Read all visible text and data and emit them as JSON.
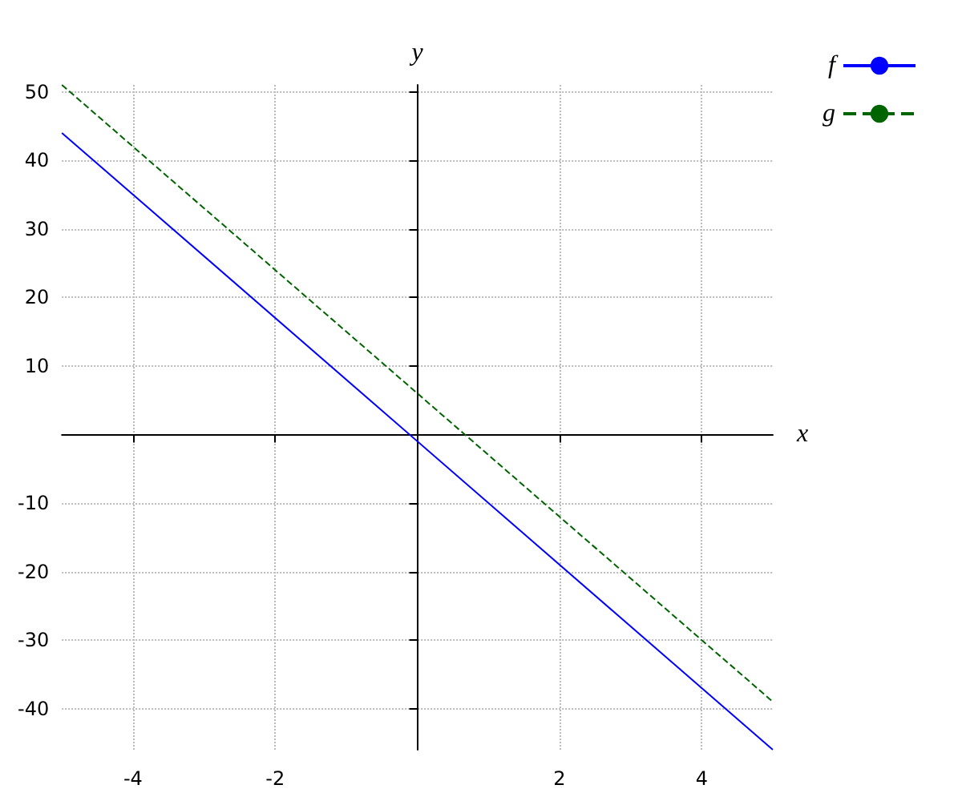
{
  "chart_data": {
    "type": "line",
    "xlabel": "x",
    "ylabel": "y",
    "x": [
      -5,
      5
    ],
    "series": [
      {
        "name": "f",
        "color": "#0000ff",
        "values": [
          44,
          -46
        ],
        "line_style": "solid"
      },
      {
        "name": "g",
        "color": "#006400",
        "values": [
          51,
          -39
        ],
        "line_style": "dashed"
      }
    ],
    "xlim": [
      -5,
      5
    ],
    "ylim": [
      -46,
      51
    ],
    "xticks": [
      -4,
      -2,
      2,
      4
    ],
    "yticks": [
      -40,
      -30,
      -20,
      -10,
      10,
      20,
      30,
      40,
      50
    ],
    "grid": true,
    "legend": "top right",
    "marker": "none"
  }
}
